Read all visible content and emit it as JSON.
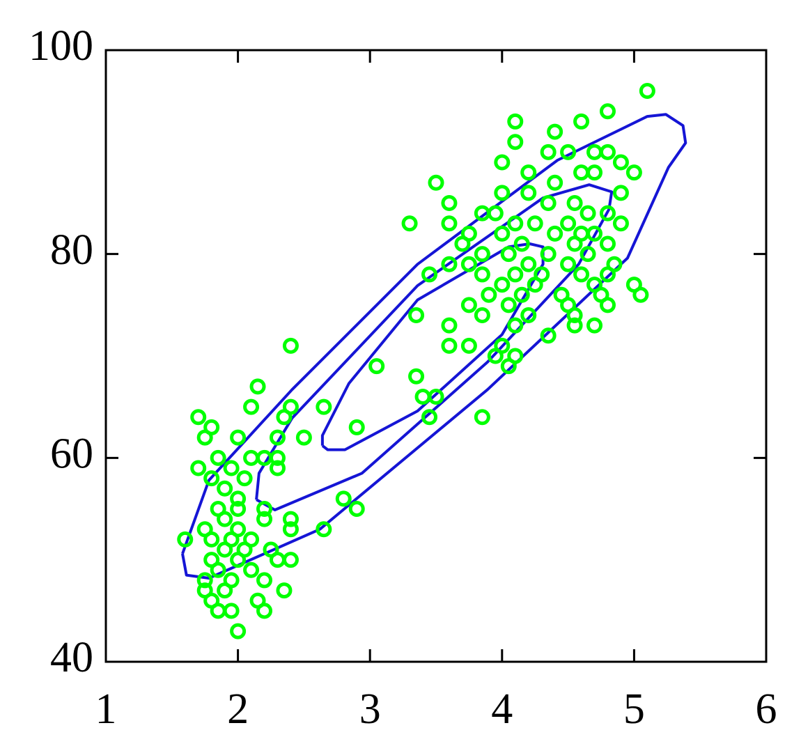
{
  "chart_data": {
    "type": "scatter",
    "xlim": [
      1,
      6
    ],
    "ylim": [
      40,
      100
    ],
    "xticks": [
      1,
      2,
      3,
      4,
      5,
      6
    ],
    "yticks": [
      40,
      60,
      80,
      100
    ],
    "points": {
      "color": "#00ff00",
      "x": [
        5.1,
        4.8,
        4.6,
        4.1,
        4.4,
        4.1,
        4.5,
        4.35,
        4.7,
        4.8,
        4.9,
        4.0,
        4.2,
        4.6,
        4.7,
        5.0,
        3.5,
        4.4,
        4.9,
        4.0,
        4.2,
        3.6,
        4.35,
        4.55,
        4.65,
        3.85,
        3.95,
        4.8,
        3.6,
        3.3,
        4.1,
        4.25,
        4.5,
        4.9,
        3.75,
        4.0,
        4.4,
        4.6,
        4.7,
        3.7,
        4.15,
        4.55,
        4.8,
        3.85,
        4.05,
        4.35,
        4.65,
        3.6,
        3.75,
        4.2,
        4.5,
        4.85,
        3.45,
        3.85,
        4.1,
        4.3,
        4.6,
        4.8,
        4.0,
        4.25,
        4.7,
        5.0,
        3.9,
        4.15,
        4.45,
        4.75,
        5.05,
        3.75,
        4.05,
        4.5,
        4.8,
        3.85,
        3.35,
        4.2,
        4.55,
        3.6,
        4.1,
        4.55,
        4.7,
        4.35,
        3.6,
        3.75,
        4.0,
        2.4,
        3.95,
        4.1,
        4.05,
        3.05,
        3.35,
        2.15,
        3.4,
        3.5,
        2.1,
        2.4,
        2.65,
        3.45,
        3.85,
        1.7,
        2.35,
        1.8,
        2.9,
        1.75,
        2.0,
        2.3,
        2.5,
        1.85,
        2.1,
        2.2,
        2.3,
        1.7,
        1.95,
        2.3,
        1.8,
        2.05,
        1.9,
        2.0,
        2.8,
        1.85,
        2.0,
        2.2,
        2.9,
        1.9,
        2.2,
        2.4,
        1.75,
        2.0,
        2.4,
        2.65,
        1.8,
        1.95,
        2.1,
        1.6,
        1.9,
        2.05,
        2.25,
        1.8,
        2.0,
        2.3,
        2.4,
        1.85,
        2.1,
        1.75,
        1.95,
        2.2,
        1.75,
        1.9,
        2.35,
        1.8,
        2.15,
        1.85,
        2.2,
        1.95,
        2.0
      ],
      "y": [
        96,
        94,
        93,
        93,
        92,
        91,
        90,
        90,
        90,
        90,
        89,
        89,
        88,
        88,
        88,
        88,
        87,
        87,
        86,
        86,
        86,
        85,
        85,
        85,
        84,
        84,
        84,
        84,
        83,
        83,
        83,
        83,
        83,
        83,
        82,
        82,
        82,
        82,
        82,
        81,
        81,
        81,
        81,
        80,
        80,
        80,
        80,
        79,
        79,
        79,
        79,
        79,
        78,
        78,
        78,
        78,
        78,
        78,
        77,
        77,
        77,
        77,
        76,
        76,
        76,
        76,
        76,
        75,
        75,
        75,
        75,
        74,
        74,
        74,
        74,
        73,
        73,
        73,
        73,
        72,
        71,
        71,
        71,
        71,
        70,
        70,
        69,
        69,
        68,
        67,
        66,
        66,
        65,
        65,
        65,
        64,
        64,
        64,
        64,
        63,
        63,
        62,
        62,
        62,
        62,
        60,
        60,
        60,
        60,
        59,
        59,
        59,
        58,
        58,
        57,
        56,
        56,
        55,
        55,
        55,
        55,
        54,
        54,
        54,
        53,
        53,
        53,
        53,
        52,
        52,
        52,
        52,
        51,
        51,
        51,
        50,
        50,
        50,
        50,
        49,
        49,
        48,
        48,
        48,
        47,
        47,
        47,
        46,
        46,
        45,
        45,
        45,
        43
      ]
    },
    "contour_color": "#1515d5",
    "contours": [
      {
        "x": [
          2.64,
          2.68,
          2.81,
          3.36,
          4.0,
          4.31,
          4.31,
          4.21,
          4.05,
          3.36,
          2.84,
          2.64,
          2.64
        ],
        "y": [
          61.2,
          60.8,
          60.8,
          64.6,
          72.1,
          79.0,
          80.7,
          81.0,
          80.7,
          75.5,
          67.3,
          62.2,
          61.2
        ]
      },
      {
        "x": [
          2.14,
          2.28,
          2.94,
          3.89,
          4.58,
          4.81,
          4.83,
          4.66,
          4.31,
          3.36,
          2.41,
          2.16,
          2.14
        ],
        "y": [
          55.9,
          54.9,
          58.5,
          69.4,
          79.0,
          84.4,
          86.1,
          86.8,
          85.5,
          76.9,
          63.9,
          58.5,
          55.9
        ]
      },
      {
        "x": [
          1.58,
          1.61,
          1.78,
          2.62,
          3.89,
          4.95,
          5.26,
          5.39,
          5.37,
          5.24,
          5.1,
          4.42,
          3.36,
          2.41,
          1.78,
          1.58
        ],
        "y": [
          50.6,
          48.5,
          48.2,
          53.0,
          66.7,
          79.6,
          88.5,
          90.9,
          92.6,
          93.7,
          93.5,
          89.2,
          79.0,
          66.7,
          57.8,
          50.6
        ]
      }
    ]
  }
}
